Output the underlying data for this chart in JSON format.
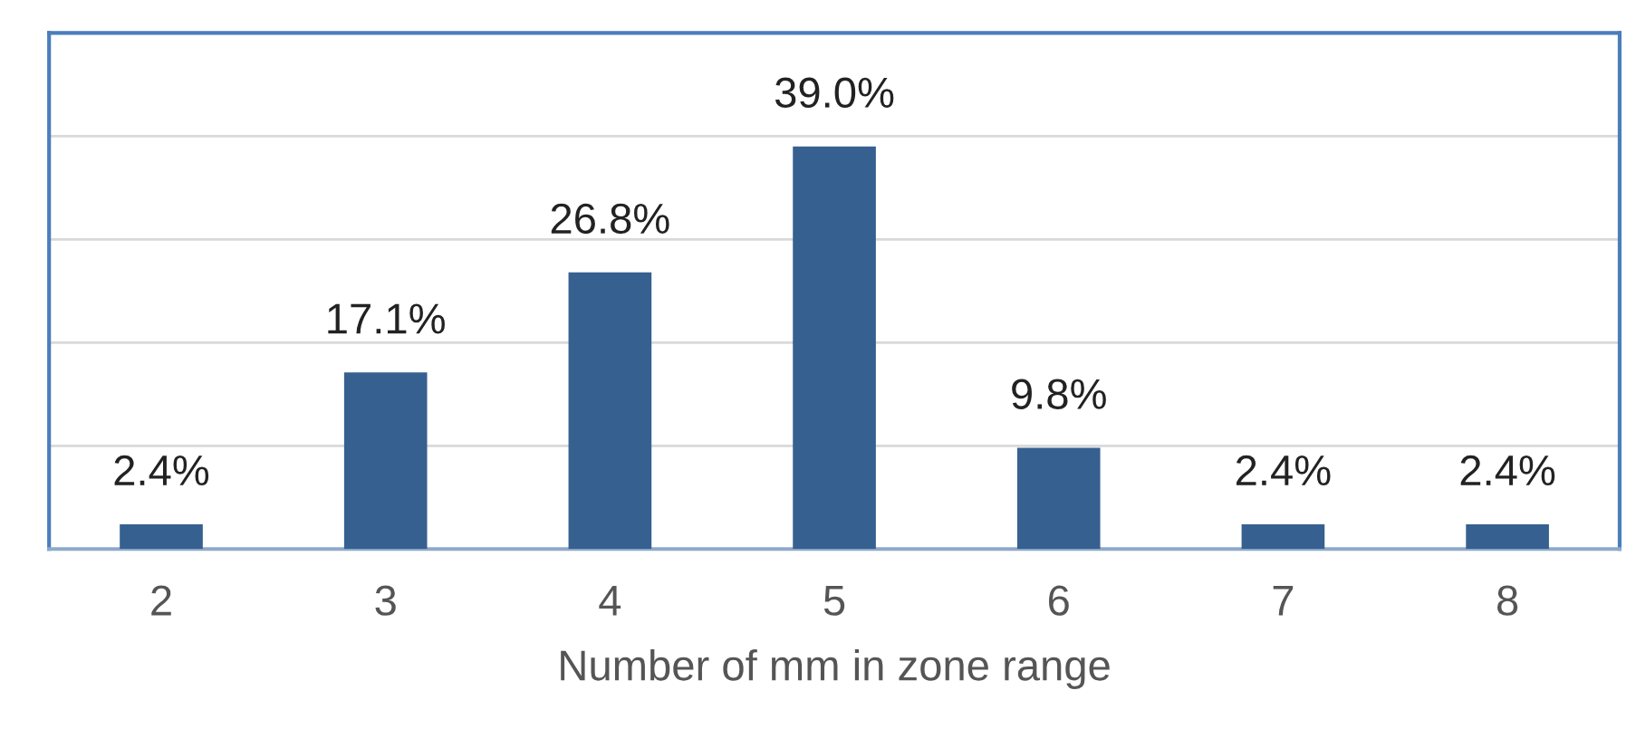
{
  "chart_data": {
    "type": "bar",
    "xlabel": "Number of mm in zone range",
    "categories": [
      "2",
      "3",
      "4",
      "5",
      "6",
      "7",
      "8"
    ],
    "series": [
      {
        "color": "#36608f",
        "values": [
          2.4,
          17.1,
          26.8,
          39.0,
          9.8,
          2.4,
          2.4
        ],
        "value_labels": [
          "2.4%",
          "17.1%",
          "26.8%",
          "39.0%",
          "9.8%",
          "2.4%",
          "2.4%"
        ]
      }
    ],
    "ylim": [
      0,
      50
    ],
    "yticks": [
      {
        "value": 0,
        "label": null
      },
      {
        "value": 10,
        "label": null
      },
      {
        "value": 20,
        "label": null
      },
      {
        "value": 30,
        "label": null
      },
      {
        "value": 40,
        "label": null
      },
      {
        "value": 50,
        "label": null
      }
    ],
    "grid": "y",
    "tick_labels": "x",
    "legend": false
  }
}
